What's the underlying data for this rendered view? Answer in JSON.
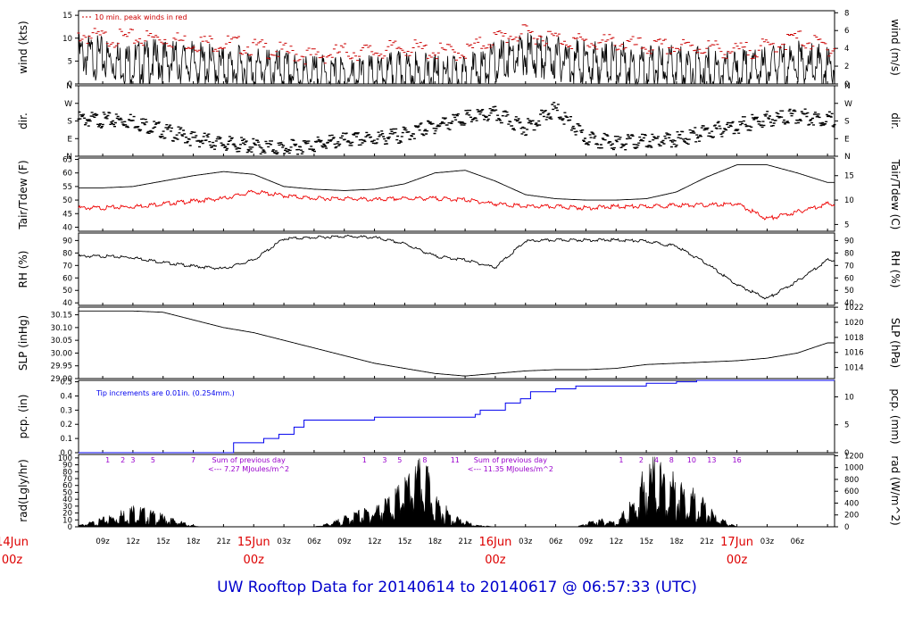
{
  "footer_title": "UW Rooftop Data for 20140614  to  20140617 @ 06:57:33  (UTC)",
  "colors": {
    "peak": "#cc0000",
    "tdew": "#ee0000",
    "precip": "#0000ee",
    "radnote": "#9900cc",
    "day": "#dd0000",
    "footer": "#0000cc"
  },
  "hour_ticks": [
    "09z",
    "12z",
    "15z",
    "18z",
    "21z",
    "00z",
    "03z",
    "06z",
    "09z",
    "12z",
    "15z",
    "18z",
    "21z",
    "00z",
    "03z",
    "06z",
    "09z",
    "12z",
    "15z",
    "18z",
    "21z",
    "00z",
    "03z",
    "06z"
  ],
  "day_labels": [
    {
      "day": "14Jun",
      "hour": "00z"
    },
    {
      "day": "15Jun",
      "hour": "00z"
    },
    {
      "day": "16Jun",
      "hour": "00z"
    },
    {
      "day": "17Jun",
      "hour": "00z"
    }
  ],
  "chart_data": [
    {
      "id": "wind",
      "type": "line",
      "ylabel": "wind (kts)",
      "ylabel_right": "wind (m/s)",
      "ylim": [
        0,
        16
      ],
      "yticks": [
        0,
        5,
        10,
        15
      ],
      "right_ylim": [
        0,
        8.23
      ],
      "right_ticks": [
        0,
        2,
        4,
        6,
        8
      ],
      "annotation": "10 min. peak winds in red",
      "x_hours": [
        0,
        3,
        6,
        9,
        12,
        15,
        18,
        21,
        24,
        27,
        30,
        33,
        36,
        39,
        42,
        45,
        48,
        51,
        54,
        57,
        60,
        63,
        66,
        69,
        72,
        75,
        78,
        81
      ],
      "series": [
        {
          "values": [
            9,
            10,
            9,
            8,
            7,
            7.5,
            7,
            6,
            6,
            5,
            4,
            4,
            4,
            5,
            4,
            4,
            7,
            9,
            8,
            7,
            7,
            6,
            6,
            6,
            5,
            6,
            7,
            6
          ]
        },
        {
          "values": [
            13,
            13,
            12,
            11,
            11,
            11,
            10,
            10,
            9,
            8,
            7,
            8,
            8,
            9,
            8,
            8,
            11,
            12,
            11,
            10,
            10,
            9,
            9,
            9,
            8,
            9,
            11,
            9
          ]
        }
      ]
    },
    {
      "id": "dir",
      "type": "scatter",
      "ylabel": "dir.",
      "ylabel_right": "dir.",
      "ylim": [
        0,
        360
      ],
      "yticks": [
        "N",
        "E",
        "S",
        "W",
        "N"
      ],
      "right_ticks": [
        "N",
        "E",
        "S",
        "W",
        "N"
      ],
      "x_hours": [
        0,
        3,
        6,
        9,
        12,
        15,
        18,
        21,
        24,
        27,
        30,
        33,
        36,
        39,
        42,
        45,
        48,
        51,
        54,
        57,
        60,
        63,
        66,
        69,
        72,
        75,
        78,
        81
      ],
      "series": [
        {
          "values": [
            225,
            215,
            210,
            205,
            200,
            150,
            110,
            85,
            70,
            60,
            80,
            100,
            110,
            130,
            175,
            215,
            235,
            165,
            260,
            110,
            90,
            95,
            105,
            145,
            175,
            210,
            225,
            210
          ]
        }
      ]
    },
    {
      "id": "temp",
      "type": "line",
      "ylabel": "Tair/Tdew (F)",
      "ylabel_right": "Tair/Tdew (C)",
      "ylim": [
        38.5,
        65.5
      ],
      "yticks": [
        40,
        45,
        50,
        55,
        60,
        65
      ],
      "right_ticks": [
        5,
        10,
        15
      ],
      "x_hours": [
        0,
        3,
        6,
        9,
        12,
        15,
        18,
        21,
        24,
        27,
        30,
        33,
        36,
        39,
        42,
        45,
        48,
        51,
        54,
        57,
        60,
        63,
        66,
        69,
        72,
        75,
        78,
        81
      ],
      "series": [
        {
          "name": "Tair",
          "values": [
            55.5,
            55,
            54.5,
            54.5,
            55,
            57,
            59,
            60.5,
            59.5,
            55,
            54,
            53.5,
            54,
            56,
            60,
            61,
            57,
            52,
            50.5,
            50,
            50,
            50.5,
            53,
            58.5,
            63,
            63,
            60,
            56.5
          ]
        },
        {
          "name": "Tdew",
          "values": [
            46.5,
            47.5,
            47.5,
            47.5,
            48,
            49,
            50,
            51,
            53.5,
            52,
            51,
            51,
            50.5,
            51,
            51,
            50.5,
            49,
            48,
            48,
            47.5,
            48,
            48,
            48.5,
            48.5,
            49,
            43.5,
            46,
            49
          ]
        }
      ]
    },
    {
      "id": "rh",
      "type": "line",
      "ylabel": "RH (%)",
      "ylabel_right": "RH (%)",
      "ylim": [
        38,
        96
      ],
      "yticks": [
        40,
        50,
        60,
        70,
        80,
        90
      ],
      "right_ticks": [
        40,
        50,
        60,
        70,
        80,
        90
      ],
      "x_hours": [
        0,
        3,
        6,
        9,
        12,
        15,
        18,
        21,
        24,
        27,
        30,
        33,
        36,
        39,
        42,
        45,
        48,
        51,
        54,
        57,
        60,
        63,
        66,
        69,
        72,
        75,
        78,
        81
      ],
      "series": [
        {
          "values": [
            72,
            75,
            78,
            78,
            77,
            73,
            70,
            68,
            75,
            92,
            93,
            94,
            93,
            88,
            78,
            75,
            69,
            90,
            91,
            91,
            91,
            90,
            86,
            72,
            55,
            44,
            58,
            75
          ]
        }
      ]
    },
    {
      "id": "slp",
      "type": "line",
      "ylabel": "SLP (inHg)",
      "ylabel_right": "SLP (hPa)",
      "ylim": [
        29.9,
        30.18
      ],
      "yticks": [
        29.9,
        29.95,
        30.0,
        30.05,
        30.1,
        30.15
      ],
      "right_ticks": [
        1014,
        1016,
        1018,
        1020,
        1022
      ],
      "x_hours": [
        0,
        3,
        6,
        9,
        12,
        15,
        18,
        21,
        24,
        27,
        30,
        33,
        36,
        39,
        42,
        45,
        48,
        51,
        54,
        57,
        60,
        63,
        66,
        69,
        72,
        75,
        78,
        81
      ],
      "series": [
        {
          "values": [
            30.17,
            30.165,
            30.165,
            30.165,
            30.165,
            30.16,
            30.13,
            30.1,
            30.08,
            30.05,
            30.02,
            29.99,
            29.96,
            29.94,
            29.92,
            29.91,
            29.92,
            29.93,
            29.935,
            29.935,
            29.94,
            29.955,
            29.96,
            29.965,
            29.97,
            29.98,
            30.0,
            30.04
          ]
        }
      ]
    },
    {
      "id": "pcp",
      "type": "line",
      "ylabel": "pcp. (in)",
      "ylabel_right": "pcp. (mm)",
      "ylim": [
        0,
        0.51
      ],
      "yticks": [
        0.0,
        0.1,
        0.2,
        0.3,
        0.4,
        0.5
      ],
      "right_ticks": [
        0,
        5,
        10
      ],
      "annotation": "Tip increments are 0.01in. (0.254mm.)",
      "x_hours": [
        0,
        21.5,
        22,
        25,
        26.5,
        28,
        29,
        36,
        46,
        46.5,
        49,
        50.5,
        51.5,
        54,
        56,
        61,
        63,
        66,
        68,
        81
      ],
      "series": [
        {
          "values": [
            0,
            0,
            0.07,
            0.1,
            0.13,
            0.18,
            0.23,
            0.25,
            0.27,
            0.3,
            0.35,
            0.38,
            0.43,
            0.45,
            0.47,
            0.47,
            0.49,
            0.5,
            0.51,
            0.51
          ]
        }
      ]
    },
    {
      "id": "rad",
      "type": "area",
      "ylabel": "rad(Lgly/hr)",
      "ylabel_right": "rad (W/m^2)",
      "ylim": [
        0,
        105
      ],
      "yticks": [
        0,
        10,
        20,
        30,
        40,
        50,
        60,
        70,
        80,
        90,
        100
      ],
      "right_ticks": [
        0,
        200,
        400,
        600,
        800,
        1000,
        1200
      ],
      "top_labels": [
        {
          "text": "1",
          "h": 9.5
        },
        {
          "text": "2",
          "h": 11
        },
        {
          "text": "3",
          "h": 12
        },
        {
          "text": "5",
          "h": 14
        },
        {
          "text": "7",
          "h": 18
        },
        {
          "text": "1",
          "h": 35
        },
        {
          "text": "3",
          "h": 37
        },
        {
          "text": "5",
          "h": 38.5
        },
        {
          "text": "8",
          "h": 41
        },
        {
          "text": "11",
          "h": 44
        },
        {
          "text": "1",
          "h": 60.5
        },
        {
          "text": "2",
          "h": 62.5
        },
        {
          "text": "4",
          "h": 64
        },
        {
          "text": "8",
          "h": 65.5
        },
        {
          "text": "10",
          "h": 67.5
        },
        {
          "text": "13",
          "h": 69.5
        },
        {
          "text": "16",
          "h": 72
        }
      ],
      "notes": [
        {
          "line1": "Sum of previous day",
          "line2": "<--- 7.27 MJoules/m^2",
          "h": 23.5
        },
        {
          "line1": "Sum of previous day",
          "line2": "<--- 11.35 MJoules/m^2",
          "h": 49.5
        }
      ],
      "x_hours": [
        0,
        6,
        8,
        10,
        12,
        14,
        16,
        18,
        19,
        20,
        22,
        24,
        30,
        32,
        34,
        36,
        38,
        40,
        41,
        42,
        43,
        44,
        46,
        48,
        56,
        57,
        58,
        60,
        62,
        63,
        64,
        65,
        66,
        67,
        68,
        70,
        72,
        81
      ],
      "series": [
        {
          "values": [
            0,
            0,
            8,
            18,
            32,
            22,
            12,
            2,
            0,
            0,
            0,
            0,
            0,
            8,
            22,
            30,
            50,
            88,
            95,
            45,
            30,
            15,
            3,
            0,
            0,
            5,
            12,
            8,
            45,
            95,
            100,
            70,
            75,
            60,
            50,
            15,
            0,
            0
          ]
        }
      ]
    }
  ]
}
